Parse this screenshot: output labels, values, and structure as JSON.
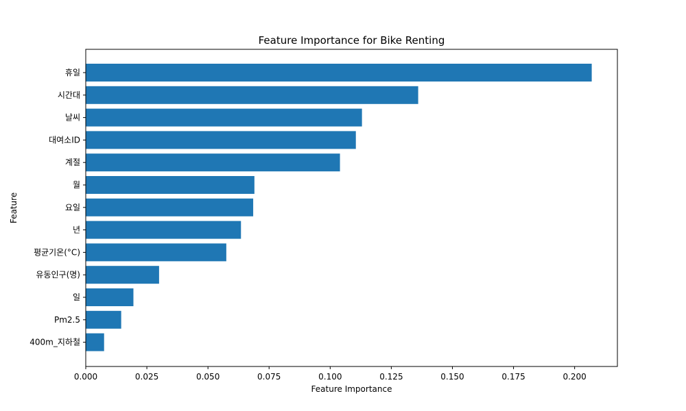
{
  "chart_data": {
    "type": "bar",
    "orientation": "horizontal",
    "title": "Feature Importance for Bike Renting",
    "xlabel": "Feature Importance",
    "ylabel": "Feature",
    "categories": [
      "휴일",
      "시간대",
      "날씨",
      "대여소ID",
      "계절",
      "월",
      "요일",
      "년",
      "평균기온(°C)",
      "유동인구(명)",
      "일",
      "Pm2.5",
      "400m_지하철"
    ],
    "values": [
      0.207,
      0.136,
      0.113,
      0.1105,
      0.104,
      0.069,
      0.0685,
      0.0635,
      0.0575,
      0.03,
      0.0195,
      0.0145,
      0.0075
    ],
    "xlim": [
      0,
      0.2175
    ],
    "xticks": [
      "0.000",
      "0.025",
      "0.050",
      "0.075",
      "0.100",
      "0.125",
      "0.150",
      "0.175",
      "0.200"
    ],
    "xtick_values": [
      0,
      0.025,
      0.05,
      0.075,
      0.1,
      0.125,
      0.15,
      0.175,
      0.2
    ],
    "bar_color": "#1f77b4",
    "grid": false,
    "legend": "none"
  }
}
